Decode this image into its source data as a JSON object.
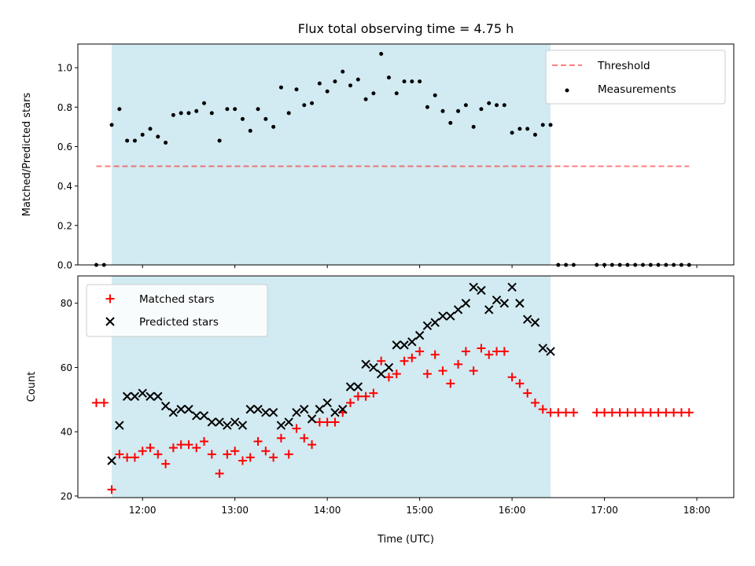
{
  "chart_data": [
    {
      "type": "scatter",
      "title": "Flux total observing time = 4.75 h",
      "xlabel": "",
      "ylabel": "Matched/Predicted stars",
      "x_unit": "hours UTC",
      "xlim": [
        "11:18",
        "18:24"
      ],
      "ylim": [
        0.0,
        1.12
      ],
      "yticks": [
        0.0,
        0.2,
        0.4,
        0.6,
        0.8,
        1.0
      ],
      "ytick_labels": [
        "0.0",
        "0.2",
        "0.4",
        "0.6",
        "0.8",
        "1.0"
      ],
      "shaded_interval": [
        "11:40",
        "16:25"
      ],
      "shade_color": "#add8e6",
      "legend_position": "upper right",
      "threshold": {
        "name": "Threshold",
        "value": 0.5,
        "x_range": [
          "11:30",
          "17:55"
        ],
        "color": "#ff0000",
        "style": "dashed"
      },
      "series": [
        {
          "name": "Measurements",
          "color": "#000000",
          "marker": "dot",
          "points": [
            [
              "11:30",
              0.0
            ],
            [
              "11:35",
              0.0
            ],
            [
              "11:40",
              0.71
            ],
            [
              "11:45",
              0.79
            ],
            [
              "11:50",
              0.63
            ],
            [
              "11:55",
              0.63
            ],
            [
              "12:00",
              0.66
            ],
            [
              "12:05",
              0.69
            ],
            [
              "12:10",
              0.65
            ],
            [
              "12:15",
              0.62
            ],
            [
              "12:20",
              0.76
            ],
            [
              "12:25",
              0.77
            ],
            [
              "12:30",
              0.77
            ],
            [
              "12:35",
              0.78
            ],
            [
              "12:40",
              0.82
            ],
            [
              "12:45",
              0.77
            ],
            [
              "12:50",
              0.63
            ],
            [
              "12:55",
              0.79
            ],
            [
              "13:00",
              0.79
            ],
            [
              "13:05",
              0.74
            ],
            [
              "13:10",
              0.68
            ],
            [
              "13:15",
              0.79
            ],
            [
              "13:20",
              0.74
            ],
            [
              "13:25",
              0.7
            ],
            [
              "13:30",
              0.9
            ],
            [
              "13:35",
              0.77
            ],
            [
              "13:40",
              0.89
            ],
            [
              "13:45",
              0.81
            ],
            [
              "13:50",
              0.82
            ],
            [
              "13:55",
              0.92
            ],
            [
              "14:00",
              0.88
            ],
            [
              "14:05",
              0.93
            ],
            [
              "14:10",
              0.98
            ],
            [
              "14:15",
              0.91
            ],
            [
              "14:20",
              0.94
            ],
            [
              "14:25",
              0.84
            ],
            [
              "14:30",
              0.87
            ],
            [
              "14:35",
              1.07
            ],
            [
              "14:40",
              0.95
            ],
            [
              "14:45",
              0.87
            ],
            [
              "14:50",
              0.93
            ],
            [
              "14:55",
              0.93
            ],
            [
              "15:00",
              0.93
            ],
            [
              "15:05",
              0.8
            ],
            [
              "15:10",
              0.86
            ],
            [
              "15:15",
              0.78
            ],
            [
              "15:20",
              0.72
            ],
            [
              "15:25",
              0.78
            ],
            [
              "15:30",
              0.81
            ],
            [
              "15:35",
              0.7
            ],
            [
              "15:40",
              0.79
            ],
            [
              "15:45",
              0.82
            ],
            [
              "15:50",
              0.81
            ],
            [
              "15:55",
              0.81
            ],
            [
              "16:00",
              0.67
            ],
            [
              "16:05",
              0.69
            ],
            [
              "16:10",
              0.69
            ],
            [
              "16:15",
              0.66
            ],
            [
              "16:20",
              0.71
            ],
            [
              "16:25",
              0.71
            ],
            [
              "16:30",
              0.0
            ],
            [
              "16:35",
              0.0
            ],
            [
              "16:40",
              0.0
            ],
            [
              "16:55",
              0.0
            ],
            [
              "17:00",
              0.0
            ],
            [
              "17:05",
              0.0
            ],
            [
              "17:10",
              0.0
            ],
            [
              "17:15",
              0.0
            ],
            [
              "17:20",
              0.0
            ],
            [
              "17:25",
              0.0
            ],
            [
              "17:30",
              0.0
            ],
            [
              "17:35",
              0.0
            ],
            [
              "17:40",
              0.0
            ],
            [
              "17:45",
              0.0
            ],
            [
              "17:50",
              0.0
            ],
            [
              "17:55",
              0.0
            ]
          ]
        }
      ]
    },
    {
      "type": "scatter",
      "title": "",
      "xlabel": "Time (UTC)",
      "ylabel": "Count",
      "x_unit": "hours UTC",
      "xlim": [
        "11:18",
        "18:24"
      ],
      "ylim": [
        19.5,
        88.5
      ],
      "yticks": [
        20,
        40,
        60,
        80
      ],
      "ytick_labels": [
        "20",
        "40",
        "60",
        "80"
      ],
      "xticks": [
        "12:00",
        "13:00",
        "14:00",
        "15:00",
        "16:00",
        "17:00",
        "18:00"
      ],
      "xtick_labels": [
        "12:00",
        "13:00",
        "14:00",
        "15:00",
        "16:00",
        "17:00",
        "18:00"
      ],
      "shaded_interval": [
        "11:40",
        "16:25"
      ],
      "shade_color": "#add8e6",
      "legend_position": "upper left",
      "series": [
        {
          "name": "Matched stars",
          "color": "#ff0000",
          "marker": "plus",
          "points": [
            [
              "11:30",
              49
            ],
            [
              "11:35",
              49
            ],
            [
              "11:40",
              22
            ],
            [
              "11:45",
              33
            ],
            [
              "11:50",
              32
            ],
            [
              "11:55",
              32
            ],
            [
              "12:00",
              34
            ],
            [
              "12:05",
              35
            ],
            [
              "12:10",
              33
            ],
            [
              "12:15",
              30
            ],
            [
              "12:20",
              35
            ],
            [
              "12:25",
              36
            ],
            [
              "12:30",
              36
            ],
            [
              "12:35",
              35
            ],
            [
              "12:40",
              37
            ],
            [
              "12:45",
              33
            ],
            [
              "12:50",
              27
            ],
            [
              "12:55",
              33
            ],
            [
              "13:00",
              34
            ],
            [
              "13:05",
              31
            ],
            [
              "13:10",
              32
            ],
            [
              "13:15",
              37
            ],
            [
              "13:20",
              34
            ],
            [
              "13:25",
              32
            ],
            [
              "13:30",
              38
            ],
            [
              "13:35",
              33
            ],
            [
              "13:40",
              41
            ],
            [
              "13:45",
              38
            ],
            [
              "13:50",
              36
            ],
            [
              "13:55",
              43
            ],
            [
              "14:00",
              43
            ],
            [
              "14:05",
              43
            ],
            [
              "14:10",
              46
            ],
            [
              "14:15",
              49
            ],
            [
              "14:20",
              51
            ],
            [
              "14:25",
              51
            ],
            [
              "14:30",
              52
            ],
            [
              "14:35",
              62
            ],
            [
              "14:40",
              57
            ],
            [
              "14:45",
              58
            ],
            [
              "14:50",
              62
            ],
            [
              "14:55",
              63
            ],
            [
              "15:00",
              65
            ],
            [
              "15:05",
              58
            ],
            [
              "15:10",
              64
            ],
            [
              "15:15",
              59
            ],
            [
              "15:20",
              55
            ],
            [
              "15:25",
              61
            ],
            [
              "15:30",
              65
            ],
            [
              "15:35",
              59
            ],
            [
              "15:40",
              66
            ],
            [
              "15:45",
              64
            ],
            [
              "15:50",
              65
            ],
            [
              "15:55",
              65
            ],
            [
              "16:00",
              57
            ],
            [
              "16:05",
              55
            ],
            [
              "16:10",
              52
            ],
            [
              "16:15",
              49
            ],
            [
              "16:20",
              47
            ],
            [
              "16:25",
              46
            ],
            [
              "16:30",
              46
            ],
            [
              "16:35",
              46
            ],
            [
              "16:40",
              46
            ],
            [
              "16:55",
              46
            ],
            [
              "17:00",
              46
            ],
            [
              "17:05",
              46
            ],
            [
              "17:10",
              46
            ],
            [
              "17:15",
              46
            ],
            [
              "17:20",
              46
            ],
            [
              "17:25",
              46
            ],
            [
              "17:30",
              46
            ],
            [
              "17:35",
              46
            ],
            [
              "17:40",
              46
            ],
            [
              "17:45",
              46
            ],
            [
              "17:50",
              46
            ],
            [
              "17:55",
              46
            ]
          ]
        },
        {
          "name": "Predicted stars",
          "color": "#000000",
          "marker": "x",
          "points": [
            [
              "11:40",
              31
            ],
            [
              "11:45",
              42
            ],
            [
              "11:50",
              51
            ],
            [
              "11:55",
              51
            ],
            [
              "12:00",
              52
            ],
            [
              "12:05",
              51
            ],
            [
              "12:10",
              51
            ],
            [
              "12:15",
              48
            ],
            [
              "12:20",
              46
            ],
            [
              "12:25",
              47
            ],
            [
              "12:30",
              47
            ],
            [
              "12:35",
              45
            ],
            [
              "12:40",
              45
            ],
            [
              "12:45",
              43
            ],
            [
              "12:50",
              43
            ],
            [
              "12:55",
              42
            ],
            [
              "13:00",
              43
            ],
            [
              "13:05",
              42
            ],
            [
              "13:10",
              47
            ],
            [
              "13:15",
              47
            ],
            [
              "13:20",
              46
            ],
            [
              "13:25",
              46
            ],
            [
              "13:30",
              42
            ],
            [
              "13:35",
              43
            ],
            [
              "13:40",
              46
            ],
            [
              "13:45",
              47
            ],
            [
              "13:50",
              44
            ],
            [
              "13:55",
              47
            ],
            [
              "14:00",
              49
            ],
            [
              "14:05",
              46
            ],
            [
              "14:10",
              47
            ],
            [
              "14:15",
              54
            ],
            [
              "14:20",
              54
            ],
            [
              "14:25",
              61
            ],
            [
              "14:30",
              60
            ],
            [
              "14:35",
              58
            ],
            [
              "14:40",
              60
            ],
            [
              "14:45",
              67
            ],
            [
              "14:50",
              67
            ],
            [
              "14:55",
              68
            ],
            [
              "15:00",
              70
            ],
            [
              "15:05",
              73
            ],
            [
              "15:10",
              74
            ],
            [
              "15:15",
              76
            ],
            [
              "15:20",
              76
            ],
            [
              "15:25",
              78
            ],
            [
              "15:30",
              80
            ],
            [
              "15:35",
              85
            ],
            [
              "15:40",
              84
            ],
            [
              "15:45",
              78
            ],
            [
              "15:50",
              81
            ],
            [
              "15:55",
              80
            ],
            [
              "16:00",
              85
            ],
            [
              "16:05",
              80
            ],
            [
              "16:10",
              75
            ],
            [
              "16:15",
              74
            ],
            [
              "16:20",
              66
            ],
            [
              "16:25",
              65
            ]
          ]
        }
      ]
    }
  ]
}
